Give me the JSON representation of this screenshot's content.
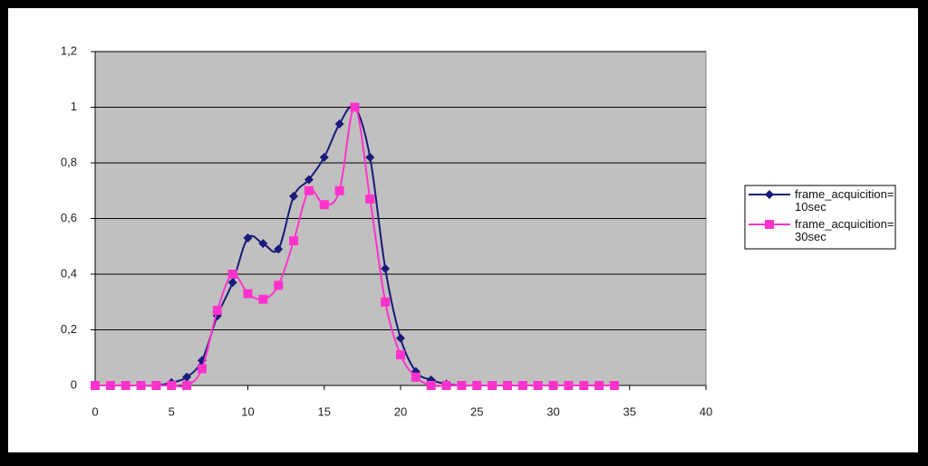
{
  "chart_data": {
    "type": "line",
    "x": [
      0,
      1,
      2,
      3,
      4,
      5,
      6,
      7,
      8,
      9,
      10,
      11,
      12,
      13,
      14,
      15,
      16,
      17,
      18,
      19,
      20,
      21,
      22,
      23,
      24,
      25,
      26,
      27,
      28,
      29,
      30,
      31,
      32,
      33,
      34
    ],
    "series": [
      {
        "name": "frame_acquicition= 10sec",
        "color": "#1a1a7a",
        "marker": "diamond",
        "values": [
          0,
          0,
          0,
          0,
          0,
          0.01,
          0.03,
          0.09,
          0.25,
          0.37,
          0.53,
          0.51,
          0.49,
          0.68,
          0.74,
          0.82,
          0.94,
          1.0,
          0.82,
          0.42,
          0.17,
          0.05,
          0.02,
          0.005,
          0,
          0,
          0,
          0,
          0,
          0,
          0,
          0,
          0,
          0,
          0
        ]
      },
      {
        "name": "frame_acquicition= 30sec",
        "color": "#ff33cc",
        "marker": "square",
        "values": [
          0,
          0,
          0,
          0,
          0,
          0,
          0,
          0.06,
          0.27,
          0.4,
          0.33,
          0.31,
          0.36,
          0.52,
          0.7,
          0.65,
          0.7,
          1.0,
          0.67,
          0.3,
          0.11,
          0.03,
          0,
          0,
          0,
          0,
          0,
          0,
          0,
          0,
          0,
          0,
          0,
          0,
          0
        ]
      }
    ],
    "xlim": [
      0,
      40
    ],
    "xticks": [
      0,
      5,
      10,
      15,
      20,
      25,
      30,
      35,
      40
    ],
    "ylim": [
      0,
      1.2
    ],
    "yticks": [
      0,
      {
        "value": 0.2,
        "label": "0,2"
      },
      {
        "value": 0.4,
        "label": "0,4"
      },
      {
        "value": 0.6,
        "label": "0,6"
      },
      {
        "value": 0.8,
        "label": "0,8"
      },
      1,
      {
        "value": 1.2,
        "label": "1,2"
      }
    ],
    "grid": true,
    "legend": "right"
  }
}
